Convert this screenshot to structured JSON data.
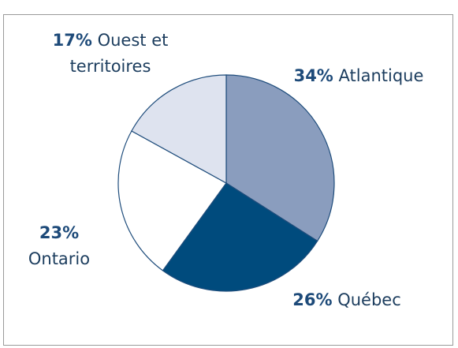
{
  "chart_data": {
    "type": "pie",
    "categories": [
      "Atlantique",
      "Québec",
      "Ontario",
      "Ouest et territoires"
    ],
    "values": [
      34,
      26,
      23,
      17
    ],
    "value_labels": [
      "34%",
      "26%",
      "23%",
      "17%"
    ],
    "colors": [
      "#8a9dbe",
      "#004b7d",
      "#ffffff",
      "#dee3ef"
    ],
    "start_angle": 0,
    "direction": "clockwise"
  }
}
